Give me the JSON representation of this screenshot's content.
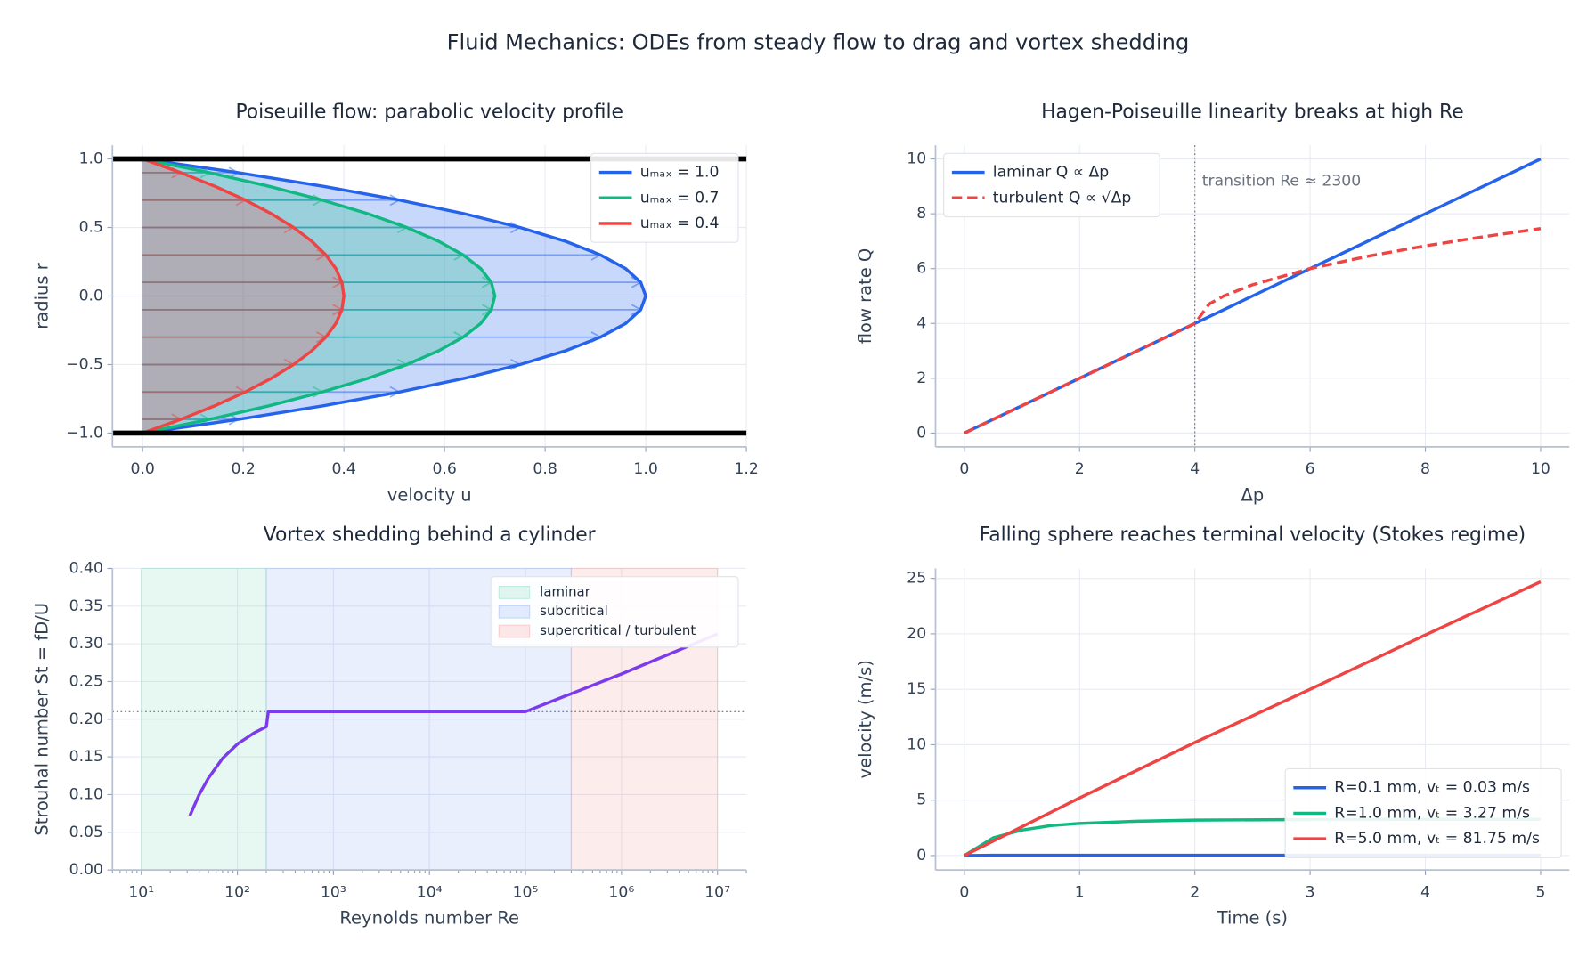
{
  "title": "Fluid Mechanics:  ODEs from steady flow to drag and vortex shedding",
  "chart_data": [
    {
      "type": "profile",
      "title": "Poiseuille flow:  parabolic velocity profile",
      "xlabel": "velocity  u",
      "ylabel": "radius  r",
      "y": [
        -1.0,
        -0.9,
        -0.8,
        -0.7,
        -0.6,
        -0.5,
        -0.4,
        -0.3,
        -0.2,
        -0.1,
        0.0,
        0.1,
        0.2,
        0.3,
        0.4,
        0.5,
        0.6,
        0.7,
        0.8,
        0.9,
        1.0
      ],
      "series": [
        {
          "name": "uₘₐₓ = 1.0",
          "color": "#2563eb",
          "values": [
            0,
            0.19,
            0.36,
            0.51,
            0.64,
            0.75,
            0.84,
            0.91,
            0.96,
            0.99,
            1.0,
            0.99,
            0.96,
            0.91,
            0.84,
            0.75,
            0.64,
            0.51,
            0.36,
            0.19,
            0
          ]
        },
        {
          "name": "uₘₐₓ = 0.7",
          "color": "#10b981",
          "values": [
            0,
            0.133,
            0.252,
            0.357,
            0.448,
            0.525,
            0.588,
            0.637,
            0.672,
            0.693,
            0.7,
            0.693,
            0.672,
            0.637,
            0.588,
            0.525,
            0.448,
            0.357,
            0.252,
            0.133,
            0
          ]
        },
        {
          "name": "uₘₐₓ = 0.4",
          "color": "#ef4444",
          "values": [
            0,
            0.076,
            0.144,
            0.204,
            0.256,
            0.3,
            0.336,
            0.364,
            0.384,
            0.396,
            0.4,
            0.396,
            0.384,
            0.364,
            0.336,
            0.3,
            0.256,
            0.204,
            0.144,
            0.076,
            0
          ]
        }
      ],
      "walls": [
        -1.0,
        1.0
      ],
      "xlim": [
        -0.06,
        1.2
      ],
      "ylim": [
        -1.1,
        1.1
      ],
      "xticks": [
        {
          "value": 0,
          "label": "0.0"
        },
        {
          "value": 0.2,
          "label": "0.2"
        },
        {
          "value": 0.4,
          "label": "0.4"
        },
        {
          "value": 0.6,
          "label": "0.6"
        },
        {
          "value": 0.8,
          "label": "0.8"
        },
        {
          "value": 1.0,
          "label": "1.0"
        },
        {
          "value": 1.2,
          "label": "1.2"
        }
      ],
      "yticks": [
        {
          "value": -1.0,
          "label": "−1.0"
        },
        {
          "value": -0.5,
          "label": "−0.5"
        },
        {
          "value": 0,
          "label": "0.0"
        },
        {
          "value": 0.5,
          "label": "0.5"
        },
        {
          "value": 1.0,
          "label": "1.0"
        }
      ],
      "grid": true,
      "legend": "upper right"
    },
    {
      "type": "line",
      "title": "Hagen-Poiseuille linearity breaks at high Re",
      "xlabel": "Δp",
      "ylabel": "flow rate Q",
      "x": [
        0,
        1,
        2,
        3,
        4,
        4.25,
        4.5,
        5,
        6,
        7,
        8,
        9,
        10
      ],
      "series": [
        {
          "name": "laminar  Q ∝ Δp",
          "color": "#2563eb",
          "values": [
            0,
            1,
            2,
            3,
            4,
            4.25,
            4.5,
            5,
            6,
            7,
            8,
            9,
            10
          ]
        },
        {
          "name": "turbulent  Q ∝ √Δp",
          "color": "#ef4444",
          "dashed": true,
          "values": [
            0,
            1,
            2,
            3,
            4,
            4.71,
            5.0,
            5.41,
            6.0,
            6.45,
            6.83,
            7.16,
            7.46
          ]
        }
      ],
      "annotation": {
        "text": "transition  Re ≈ 2300",
        "x": 4
      },
      "xlim": [
        -0.5,
        10.5
      ],
      "ylim": [
        -0.5,
        10.5
      ],
      "xticks": [
        0,
        2,
        4,
        6,
        8,
        10
      ],
      "yticks": [
        0,
        2,
        4,
        6,
        8,
        10
      ],
      "grid": true,
      "legend": "upper left"
    },
    {
      "type": "line",
      "title": "Vortex shedding behind a cylinder",
      "xlabel": "Reynolds number Re",
      "ylabel": "Strouhal number St = fD/U",
      "xscale": "log",
      "x": [
        32,
        40,
        50,
        70,
        100,
        150,
        200,
        210,
        100000,
        1000000,
        10000000
      ],
      "series": [
        {
          "name": "St",
          "color": "#7c3aed",
          "values": [
            0.072,
            0.1,
            0.122,
            0.148,
            0.167,
            0.182,
            0.19,
            0.21,
            0.21,
            0.26,
            0.313
          ]
        }
      ],
      "regions": [
        {
          "name": "laminar",
          "color": "#10b981",
          "start": 10,
          "end": 200
        },
        {
          "name": "subcritical",
          "color": "#2563eb",
          "start": 200,
          "end": 300000
        },
        {
          "name": "supercritical / turbulent",
          "color": "#ef4444",
          "start": 300000,
          "end": 10000000
        }
      ],
      "reference": 0.21,
      "xlim": [
        5,
        20000000
      ],
      "ylim": [
        0,
        0.4
      ],
      "xticks": [
        {
          "value": 10,
          "label": "10¹"
        },
        {
          "value": 100,
          "label": "10²"
        },
        {
          "value": 1000,
          "label": "10³"
        },
        {
          "value": 10000,
          "label": "10⁴"
        },
        {
          "value": 100000,
          "label": "10⁵"
        },
        {
          "value": 1000000,
          "label": "10⁶"
        },
        {
          "value": 10000000,
          "label": "10⁷"
        }
      ],
      "yticks": [
        {
          "value": 0,
          "label": "0.00"
        },
        {
          "value": 0.05,
          "label": "0.05"
        },
        {
          "value": 0.1,
          "label": "0.10"
        },
        {
          "value": 0.15,
          "label": "0.15"
        },
        {
          "value": 0.2,
          "label": "0.20"
        },
        {
          "value": 0.25,
          "label": "0.25"
        },
        {
          "value": 0.3,
          "label": "0.30"
        },
        {
          "value": 0.35,
          "label": "0.35"
        },
        {
          "value": 0.4,
          "label": "0.40"
        }
      ],
      "grid": true,
      "legend": "upper right"
    },
    {
      "type": "line",
      "title": "Falling sphere reaches terminal velocity (Stokes regime)",
      "xlabel": "Time (s)",
      "ylabel": "velocity (m/s)",
      "x": [
        0,
        0.25,
        0.5,
        0.75,
        1,
        1.5,
        2,
        3,
        4,
        5
      ],
      "series": [
        {
          "name": "R=0.1 mm,  vₜ = 0.03 m/s",
          "color": "#2563eb",
          "values": [
            0,
            0.03,
            0.03,
            0.03,
            0.03,
            0.03,
            0.03,
            0.03,
            0.03,
            0.03
          ]
        },
        {
          "name": "R=1.0 mm,  vₜ = 3.27 m/s",
          "color": "#10b981",
          "values": [
            0,
            1.6,
            2.3,
            2.7,
            2.9,
            3.1,
            3.2,
            3.25,
            3.27,
            3.27
          ]
        },
        {
          "name": "R=5.0 mm,  vₜ = 81.75 m/s",
          "color": "#ef4444",
          "values": [
            0,
            1.3,
            2.6,
            3.9,
            5.2,
            7.7,
            10.2,
            15.0,
            19.9,
            24.7
          ]
        }
      ],
      "xlim": [
        -0.25,
        5.25
      ],
      "ylim": [
        -1.3,
        25.9
      ],
      "xticks": [
        0,
        1,
        2,
        3,
        4,
        5
      ],
      "yticks": [
        0,
        5,
        10,
        15,
        20,
        25
      ],
      "grid": true,
      "legend": "lower right"
    }
  ]
}
